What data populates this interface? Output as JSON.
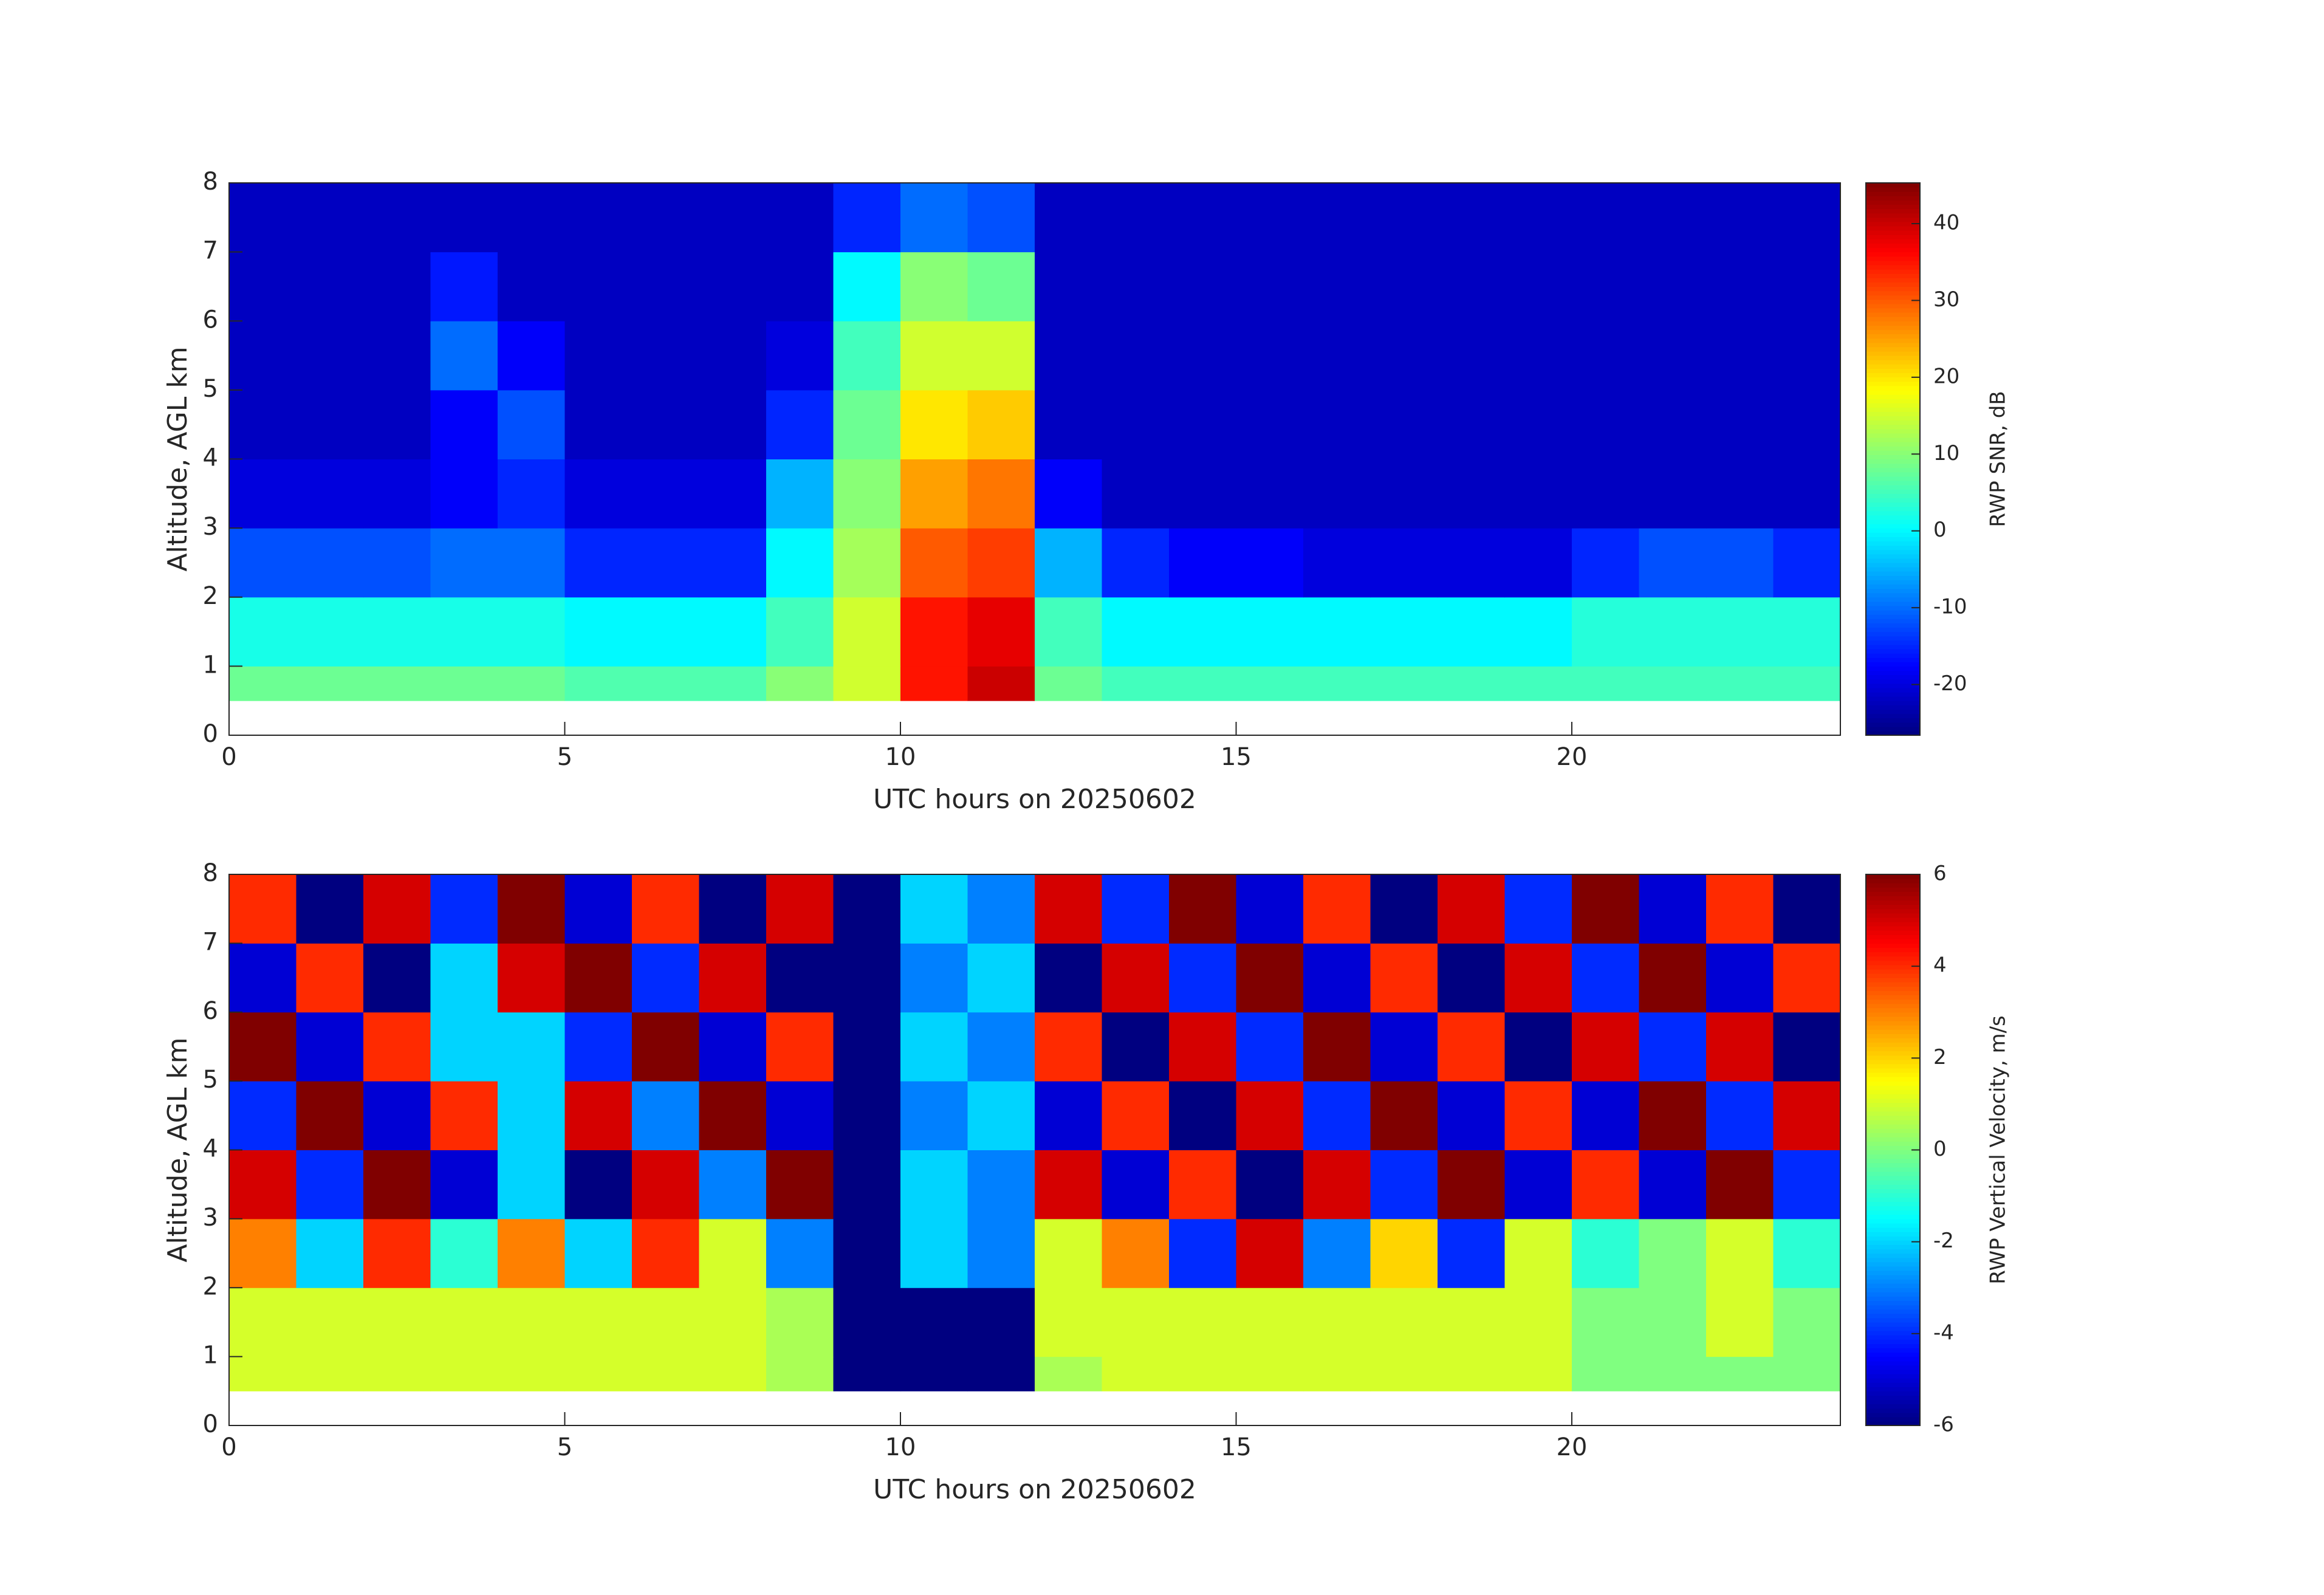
{
  "chart_data": [
    {
      "type": "heatmap",
      "xlabel": "UTC hours on 20250602",
      "ylabel": "Altitude, AGL km",
      "xlim": [
        0,
        24
      ],
      "xticks": [
        0,
        5,
        10,
        15,
        20
      ],
      "ylim": [
        0,
        8
      ],
      "yticks": [
        0,
        1,
        2,
        3,
        4,
        5,
        6,
        7,
        8
      ],
      "x_bins": [
        0,
        1,
        2,
        3,
        4,
        5,
        6,
        7,
        8,
        9,
        10,
        11,
        12,
        13,
        14,
        15,
        16,
        17,
        18,
        19,
        20,
        21,
        22,
        23,
        24
      ],
      "y_bins": [
        0.5,
        1,
        2,
        3,
        4,
        5,
        6,
        7,
        8
      ],
      "values": [
        [
          8,
          8,
          8,
          8,
          8,
          6,
          6,
          6,
          10,
          15,
          35,
          40,
          8,
          5,
          5,
          5,
          5,
          5,
          5,
          5,
          5,
          5,
          5,
          5
        ],
        [
          2,
          2,
          2,
          2,
          2,
          0,
          0,
          0,
          5,
          15,
          35,
          38,
          5,
          0,
          0,
          0,
          0,
          0,
          0,
          0,
          3,
          3,
          3,
          3
        ],
        [
          -12,
          -12,
          -12,
          -10,
          -10,
          -15,
          -15,
          -15,
          0,
          12,
          30,
          32,
          -5,
          -15,
          -18,
          -18,
          -20,
          -20,
          -20,
          -20,
          -15,
          -12,
          -12,
          -15
        ],
        [
          -20,
          -20,
          -20,
          -18,
          -15,
          -20,
          -20,
          -20,
          -5,
          10,
          25,
          28,
          -18,
          -22,
          -22,
          -22,
          -22,
          -22,
          -22,
          -22,
          -22,
          -22,
          -22,
          -22
        ],
        [
          -22,
          -22,
          -22,
          -18,
          -12,
          -22,
          -22,
          -22,
          -15,
          8,
          20,
          22,
          -22,
          -22,
          -22,
          -22,
          -22,
          -22,
          -22,
          -22,
          -22,
          -22,
          -22,
          -22
        ],
        [
          -22,
          -22,
          -22,
          -10,
          -18,
          -22,
          -22,
          -22,
          -20,
          5,
          15,
          15,
          -22,
          -22,
          -22,
          -22,
          -22,
          -22,
          -22,
          -22,
          -22,
          -22,
          -22,
          -22
        ],
        [
          -22,
          -22,
          -22,
          -16,
          -22,
          -22,
          -22,
          -22,
          -22,
          0,
          10,
          8,
          -22,
          -22,
          -22,
          -22,
          -22,
          -22,
          -22,
          -22,
          -22,
          -22,
          -22,
          -22
        ],
        [
          -22,
          -22,
          -22,
          -22,
          -22,
          -22,
          -22,
          -22,
          -22,
          -15,
          -10,
          -12,
          -22,
          -22,
          -22,
          -22,
          -22,
          -22,
          -22,
          -22,
          -22,
          -22,
          -22,
          -22
        ]
      ],
      "colorbar": {
        "label": "RWP SNR, dB",
        "lim": [
          -26.6,
          45.3
        ],
        "ticks": [
          -20,
          -10,
          0,
          10,
          20,
          30,
          40
        ]
      }
    },
    {
      "type": "heatmap",
      "xlabel": "UTC hours on 20250602",
      "ylabel": "Altitude, AGL km",
      "xlim": [
        0,
        24
      ],
      "xticks": [
        0,
        5,
        10,
        15,
        20
      ],
      "ylim": [
        0,
        8
      ],
      "yticks": [
        0,
        1,
        2,
        3,
        4,
        5,
        6,
        7,
        8
      ],
      "x_bins": [
        0,
        1,
        2,
        3,
        4,
        5,
        6,
        7,
        8,
        9,
        10,
        11,
        12,
        13,
        14,
        15,
        16,
        17,
        18,
        19,
        20,
        21,
        22,
        23,
        24
      ],
      "y_bins": [
        0.5,
        1,
        2,
        3,
        4,
        5,
        6,
        7,
        8
      ],
      "values": [
        [
          1,
          1,
          1,
          1,
          1,
          1,
          1,
          1,
          0.5,
          -6,
          -6,
          -6,
          0.5,
          1,
          1,
          1,
          1,
          1,
          1,
          1,
          0,
          0,
          0,
          0
        ],
        [
          1,
          1,
          1,
          1,
          1,
          1,
          1,
          1,
          0.5,
          -6,
          -6,
          -6,
          1,
          1,
          1,
          1,
          1,
          1,
          1,
          1,
          0,
          0,
          1,
          0
        ],
        [
          3,
          -2,
          4,
          -1,
          3,
          -2,
          4,
          1,
          -3,
          -6,
          -2,
          -3,
          1,
          3,
          -4,
          5,
          -3,
          2,
          -4,
          1,
          -1,
          0,
          1,
          -1
        ],
        [
          5,
          -4,
          6,
          -5,
          -2,
          -6,
          5,
          -3,
          6,
          -6,
          -2,
          -3,
          5,
          -5,
          4,
          -6,
          5,
          -4,
          6,
          -5,
          4,
          -5,
          6,
          -4
        ],
        [
          -4,
          6,
          -5,
          4,
          -2,
          5,
          -3,
          6,
          -5,
          -6,
          -3,
          -2,
          -5,
          4,
          -6,
          5,
          -4,
          6,
          -5,
          4,
          -5,
          6,
          -4,
          5
        ],
        [
          6,
          -5,
          4,
          -2,
          -2,
          -4,
          6,
          -5,
          4,
          -6,
          -2,
          -3,
          4,
          -6,
          5,
          -4,
          6,
          -5,
          4,
          -6,
          5,
          -4,
          5,
          -6
        ],
        [
          -5,
          4,
          -6,
          -2,
          5,
          6,
          -4,
          5,
          -6,
          -6,
          -3,
          -2,
          -6,
          5,
          -4,
          6,
          -5,
          4,
          -6,
          5,
          -4,
          6,
          -5,
          4
        ],
        [
          4,
          -6,
          5,
          -4,
          6,
          -5,
          4,
          -6,
          5,
          -6,
          -2,
          -3,
          5,
          -4,
          6,
          -5,
          4,
          -6,
          5,
          -4,
          6,
          -5,
          4,
          -6
        ]
      ],
      "colorbar": {
        "label": "RWP Vertical Velocity, m/s",
        "lim": [
          -6,
          6
        ],
        "ticks": [
          -6,
          -4,
          -2,
          0,
          2,
          4,
          6
        ]
      }
    }
  ]
}
